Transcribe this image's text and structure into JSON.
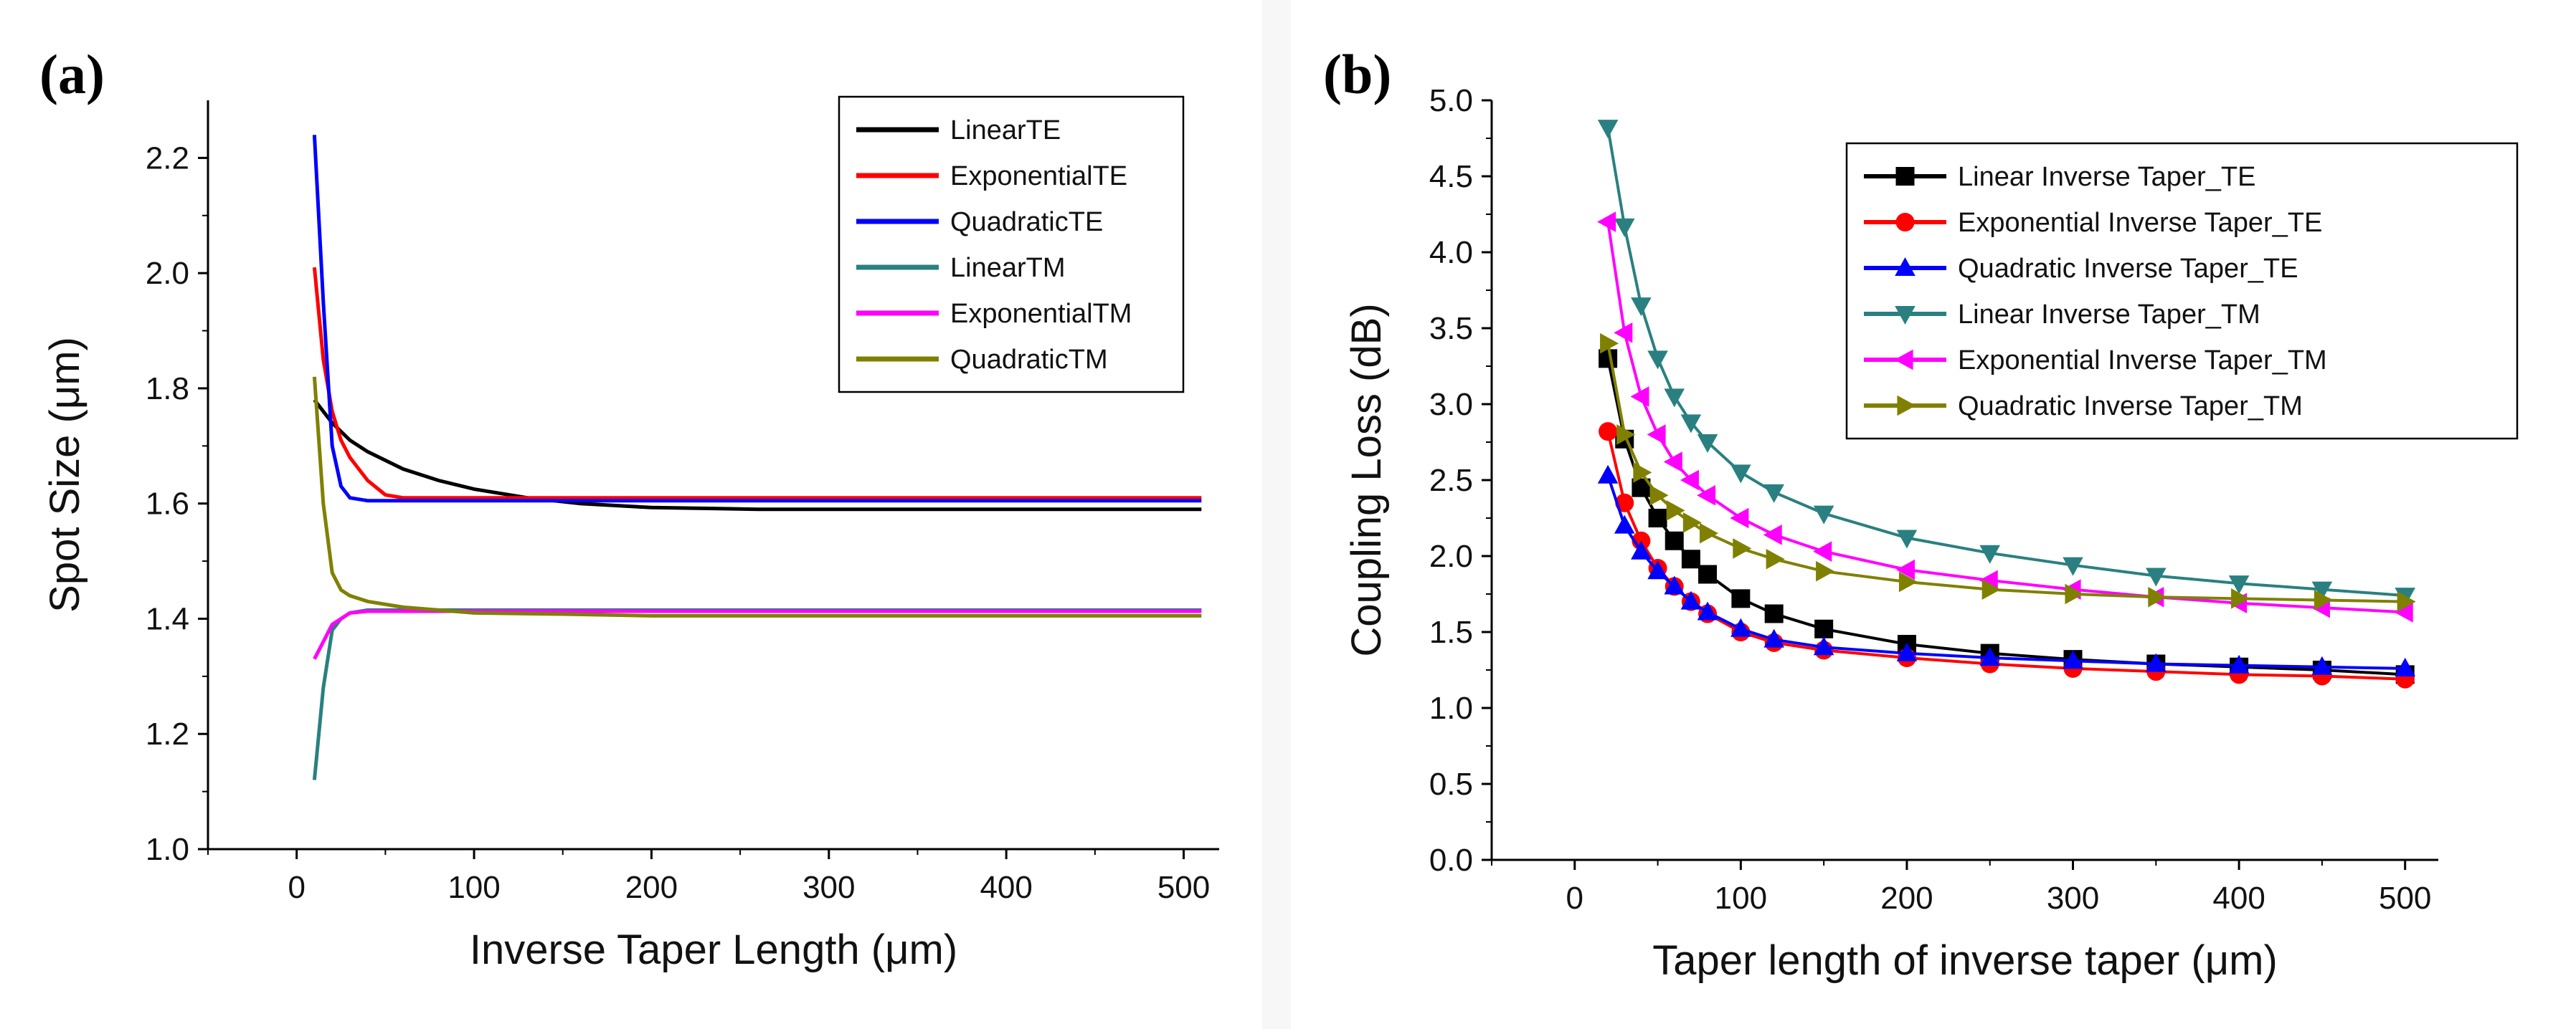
{
  "chart_data": [
    {
      "panel_label": "(a)",
      "type": "line",
      "xlabel": "Inverse Taper Length (μm)",
      "ylabel": "Spot Size (μm)",
      "xlim": [
        -50,
        520
      ],
      "ylim": [
        1.0,
        2.3
      ],
      "xticks": [
        0,
        100,
        200,
        300,
        400,
        500
      ],
      "yticks": [
        1.0,
        1.2,
        1.4,
        1.6,
        1.8,
        2.0,
        2.2
      ],
      "xtick_labels": [
        "0",
        "100",
        "200",
        "300",
        "400",
        "500"
      ],
      "ytick_labels": [
        "1.0",
        "1.2",
        "1.4",
        "1.6",
        "1.8",
        "2.0",
        "2.2"
      ],
      "legend_position": "top-right",
      "series": [
        {
          "name": "LinearTE",
          "color": "#000000",
          "x": [
            10,
            20,
            30,
            40,
            60,
            80,
            100,
            130,
            160,
            200,
            260,
            350,
            510
          ],
          "y": [
            1.78,
            1.74,
            1.71,
            1.69,
            1.66,
            1.64,
            1.625,
            1.61,
            1.6,
            1.593,
            1.59,
            1.59,
            1.59
          ]
        },
        {
          "name": "ExponentialTE",
          "color": "#ff0000",
          "x": [
            10,
            15,
            20,
            25,
            30,
            40,
            50,
            60,
            80,
            510
          ],
          "y": [
            2.01,
            1.85,
            1.76,
            1.71,
            1.68,
            1.64,
            1.615,
            1.61,
            1.61,
            1.61
          ]
        },
        {
          "name": "QuadraticTE",
          "color": "#0000ff",
          "x": [
            10,
            15,
            20,
            25,
            30,
            40,
            60,
            510
          ],
          "y": [
            2.24,
            1.95,
            1.7,
            1.63,
            1.61,
            1.605,
            1.605,
            1.605
          ]
        },
        {
          "name": "LinearTM",
          "color": "#2a8080",
          "x": [
            10,
            15,
            20,
            25,
            30,
            40,
            60,
            510
          ],
          "y": [
            1.12,
            1.28,
            1.38,
            1.4,
            1.41,
            1.415,
            1.415,
            1.415
          ]
        },
        {
          "name": "ExponentialTM",
          "color": "#ff00ff",
          "x": [
            10,
            15,
            20,
            25,
            30,
            40,
            60,
            510
          ],
          "y": [
            1.33,
            1.36,
            1.39,
            1.4,
            1.41,
            1.413,
            1.413,
            1.413
          ]
        },
        {
          "name": "QuadraticTM",
          "color": "#808000",
          "x": [
            10,
            15,
            20,
            25,
            30,
            40,
            60,
            80,
            100,
            150,
            200,
            510
          ],
          "y": [
            1.82,
            1.6,
            1.48,
            1.45,
            1.44,
            1.43,
            1.42,
            1.415,
            1.41,
            1.408,
            1.405,
            1.405
          ]
        }
      ]
    },
    {
      "panel_label": "(b)",
      "type": "line",
      "xlabel": "Taper length of inverse taper (μm)",
      "ylabel": "Coupling Loss  (dB)",
      "xlim": [
        -50,
        520
      ],
      "ylim": [
        0.0,
        5.0
      ],
      "xticks": [
        0,
        100,
        200,
        300,
        400,
        500
      ],
      "yticks": [
        0.0,
        0.5,
        1.0,
        1.5,
        2.0,
        2.5,
        3.0,
        3.5,
        4.0,
        4.5,
        5.0
      ],
      "xtick_labels": [
        "0",
        "100",
        "200",
        "300",
        "400",
        "500"
      ],
      "ytick_labels": [
        "0.0",
        "0.5",
        "1.0",
        "1.5",
        "2.0",
        "2.5",
        "3.0",
        "3.5",
        "4.0",
        "4.5",
        "5.0"
      ],
      "legend_position": "top-right",
      "series": [
        {
          "name": "Linear Inverse Taper_TE",
          "color": "#000000",
          "marker": "square",
          "x": [
            20,
            30,
            40,
            50,
            60,
            70,
            80,
            100,
            120,
            150,
            200,
            250,
            300,
            350,
            400,
            450,
            500
          ],
          "y": [
            3.3,
            2.77,
            2.45,
            2.25,
            2.1,
            1.98,
            1.88,
            1.72,
            1.62,
            1.52,
            1.42,
            1.36,
            1.32,
            1.29,
            1.27,
            1.25,
            1.22
          ]
        },
        {
          "name": "Exponential Inverse Taper_TE",
          "color": "#ff0000",
          "marker": "circle",
          "x": [
            20,
            30,
            40,
            50,
            60,
            70,
            80,
            100,
            120,
            150,
            200,
            250,
            300,
            350,
            400,
            450,
            500
          ],
          "y": [
            2.82,
            2.35,
            2.1,
            1.92,
            1.8,
            1.7,
            1.62,
            1.5,
            1.43,
            1.38,
            1.33,
            1.29,
            1.26,
            1.24,
            1.22,
            1.21,
            1.19
          ]
        },
        {
          "name": "Quadratic Inverse Taper_TE",
          "color": "#0000ff",
          "marker": "triangle-up",
          "x": [
            20,
            30,
            40,
            50,
            60,
            70,
            80,
            100,
            120,
            150,
            200,
            250,
            300,
            350,
            400,
            450,
            500
          ],
          "y": [
            2.53,
            2.2,
            2.03,
            1.9,
            1.8,
            1.7,
            1.63,
            1.52,
            1.45,
            1.4,
            1.36,
            1.33,
            1.31,
            1.29,
            1.28,
            1.27,
            1.26
          ]
        },
        {
          "name": "Linear Inverse Taper_TM",
          "color": "#2a8080",
          "marker": "triangle-down",
          "x": [
            20,
            30,
            40,
            50,
            60,
            70,
            80,
            100,
            120,
            150,
            200,
            250,
            300,
            350,
            400,
            450,
            500
          ],
          "y": [
            4.82,
            4.17,
            3.65,
            3.3,
            3.05,
            2.88,
            2.75,
            2.55,
            2.42,
            2.28,
            2.12,
            2.02,
            1.94,
            1.87,
            1.82,
            1.78,
            1.74
          ]
        },
        {
          "name": "Exponential Inverse Taper_TM",
          "color": "#ff00ff",
          "marker": "triangle-left",
          "x": [
            20,
            30,
            40,
            50,
            60,
            70,
            80,
            100,
            120,
            150,
            200,
            250,
            300,
            350,
            400,
            450,
            500
          ],
          "y": [
            4.2,
            3.47,
            3.05,
            2.8,
            2.62,
            2.5,
            2.4,
            2.25,
            2.14,
            2.03,
            1.91,
            1.84,
            1.78,
            1.73,
            1.69,
            1.66,
            1.63
          ]
        },
        {
          "name": "Quadratic Inverse Taper_TM",
          "color": "#808000",
          "marker": "triangle-right",
          "x": [
            20,
            30,
            40,
            50,
            60,
            70,
            80,
            100,
            120,
            150,
            200,
            250,
            300,
            350,
            400,
            450,
            500
          ],
          "y": [
            3.4,
            2.8,
            2.55,
            2.4,
            2.3,
            2.22,
            2.15,
            2.05,
            1.98,
            1.9,
            1.83,
            1.78,
            1.75,
            1.73,
            1.72,
            1.71,
            1.7
          ]
        }
      ]
    }
  ]
}
